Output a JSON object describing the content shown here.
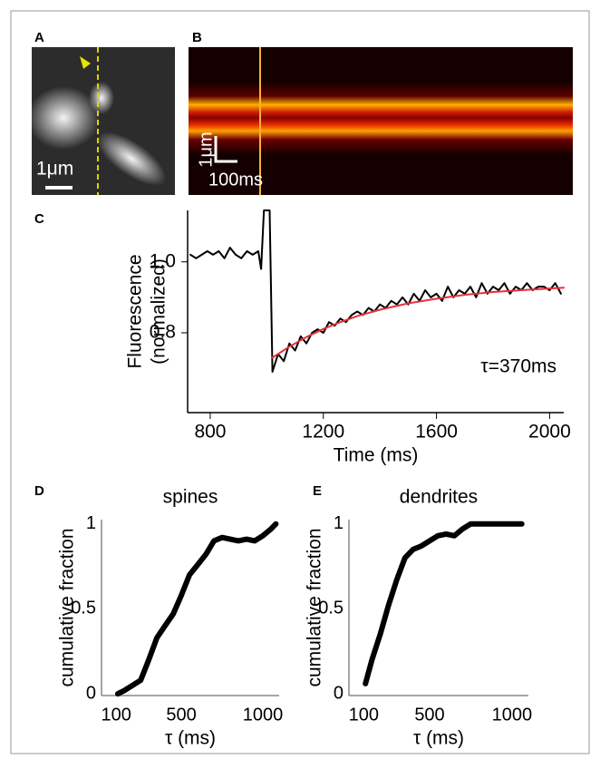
{
  "panels": [
    {
      "label": "A",
      "scale_bar": "1μm"
    },
    {
      "label": "B",
      "scale_bar_y": "1μm",
      "scale_bar_x": "100ms"
    },
    {
      "label": "C"
    },
    {
      "label": "D"
    },
    {
      "label": "E"
    }
  ],
  "chart_data": [
    {
      "type": "line",
      "ylabel": [
        "Fluorescence",
        "(normalized)"
      ],
      "xlabel": "Time (ms)",
      "annotation": "τ=370ms",
      "xlim": [
        720,
        2050
      ],
      "ylim": [
        0.575,
        1.145
      ],
      "xticks": [
        800,
        1200,
        1600,
        2000
      ],
      "yticks": [
        {
          "value": 1.0,
          "label": "1.0"
        },
        {
          "value": 0.8,
          "label": "0.8"
        }
      ],
      "series": [
        {
          "color": "#000000",
          "x": [
            730,
            750,
            770,
            790,
            810,
            830,
            850,
            870,
            890,
            910,
            930,
            950,
            970,
            980,
            990,
            1000,
            1010,
            1020,
            1040,
            1060,
            1080,
            1100,
            1120,
            1140,
            1160,
            1180,
            1200,
            1220,
            1240,
            1260,
            1280,
            1300,
            1320,
            1340,
            1360,
            1380,
            1400,
            1420,
            1440,
            1460,
            1480,
            1500,
            1520,
            1540,
            1560,
            1580,
            1600,
            1620,
            1640,
            1660,
            1680,
            1700,
            1720,
            1740,
            1760,
            1780,
            1800,
            1820,
            1840,
            1860,
            1880,
            1900,
            1920,
            1940,
            1960,
            1980,
            2000,
            2020,
            2040
          ],
          "values": [
            1.02,
            1.01,
            1.02,
            1.03,
            1.02,
            1.03,
            1.01,
            1.04,
            1.02,
            1.01,
            1.03,
            1.02,
            1.03,
            0.98,
            1.145,
            1.145,
            1.145,
            0.69,
            0.74,
            0.72,
            0.77,
            0.75,
            0.79,
            0.77,
            0.8,
            0.81,
            0.8,
            0.83,
            0.82,
            0.84,
            0.83,
            0.85,
            0.86,
            0.85,
            0.87,
            0.86,
            0.88,
            0.87,
            0.89,
            0.88,
            0.9,
            0.88,
            0.91,
            0.89,
            0.92,
            0.9,
            0.91,
            0.89,
            0.93,
            0.9,
            0.92,
            0.91,
            0.93,
            0.9,
            0.94,
            0.91,
            0.93,
            0.92,
            0.94,
            0.91,
            0.93,
            0.92,
            0.94,
            0.92,
            0.93,
            0.93,
            0.92,
            0.94,
            0.91
          ]
        },
        {
          "color": "#e8303a",
          "x": [
            1020,
            1080,
            1140,
            1200,
            1260,
            1320,
            1400,
            1500,
            1600,
            1700,
            1800,
            1900,
            2000,
            2050
          ],
          "values": [
            0.73,
            0.761,
            0.788,
            0.811,
            0.83,
            0.847,
            0.865,
            0.883,
            0.896,
            0.907,
            0.915,
            0.92,
            0.925,
            0.927
          ]
        }
      ]
    },
    {
      "type": "line",
      "title": "spines",
      "ylabel": [
        "cumulative fraction"
      ],
      "xlabel": "τ (ms)",
      "xlim": [
        10,
        1100
      ],
      "ylim": [
        -0.01,
        1.025
      ],
      "xticks": [
        100,
        500,
        1000
      ],
      "yticks": [
        0,
        0.5,
        1
      ],
      "series": [
        {
          "color": "#000000",
          "x": [
            110,
            150,
            200,
            250,
            300,
            350,
            400,
            450,
            500,
            550,
            600,
            650,
            700,
            750,
            800,
            850,
            900,
            950,
            1000,
            1050,
            1080
          ],
          "values": [
            0.0,
            0.02,
            0.05,
            0.08,
            0.2,
            0.33,
            0.4,
            0.47,
            0.58,
            0.7,
            0.76,
            0.82,
            0.9,
            0.92,
            0.91,
            0.9,
            0.91,
            0.9,
            0.93,
            0.97,
            1.0
          ]
        }
      ]
    },
    {
      "type": "line",
      "title": "dendrites",
      "ylabel": [
        "cumulative fraction"
      ],
      "xlabel": "τ (ms)",
      "xlim": [
        10,
        1100
      ],
      "ylim": [
        -0.01,
        1.025
      ],
      "xticks": [
        100,
        500,
        1000
      ],
      "yticks": [
        0,
        0.5,
        1
      ],
      "series": [
        {
          "color": "#000000",
          "x": [
            110,
            150,
            200,
            250,
            300,
            350,
            400,
            450,
            500,
            550,
            600,
            650,
            700,
            750,
            800,
            900,
            1000,
            1060
          ],
          "values": [
            0.06,
            0.2,
            0.35,
            0.52,
            0.67,
            0.8,
            0.85,
            0.87,
            0.9,
            0.93,
            0.94,
            0.93,
            0.97,
            1.0,
            1.0,
            1.0,
            1.0,
            1.0
          ]
        }
      ]
    }
  ]
}
